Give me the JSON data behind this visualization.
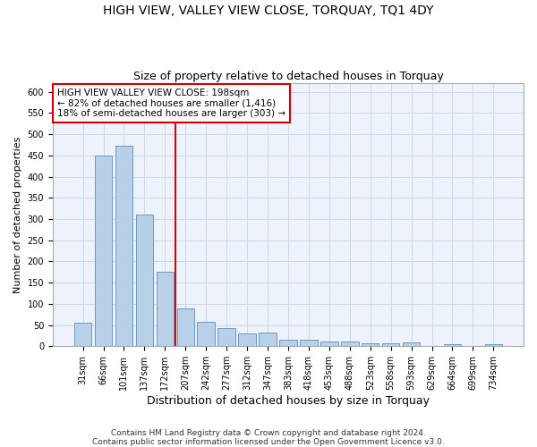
{
  "title": "HIGH VIEW, VALLEY VIEW CLOSE, TORQUAY, TQ1 4DY",
  "subtitle": "Size of property relative to detached houses in Torquay",
  "xlabel": "Distribution of detached houses by size in Torquay",
  "ylabel": "Number of detached properties",
  "categories": [
    "31sqm",
    "66sqm",
    "101sqm",
    "137sqm",
    "172sqm",
    "207sqm",
    "242sqm",
    "277sqm",
    "312sqm",
    "347sqm",
    "383sqm",
    "418sqm",
    "453sqm",
    "488sqm",
    "523sqm",
    "558sqm",
    "593sqm",
    "629sqm",
    "664sqm",
    "699sqm",
    "734sqm"
  ],
  "values": [
    55,
    450,
    472,
    311,
    176,
    88,
    58,
    42,
    30,
    32,
    15,
    15,
    10,
    10,
    7,
    7,
    9,
    0,
    5,
    0,
    5
  ],
  "bar_color": "#b8d0e8",
  "bar_edge_color": "#6699cc",
  "grid_color": "#d0d8e8",
  "background_color": "#ffffff",
  "plot_background": "#eef2fa",
  "annotation_text_line1": "HIGH VIEW VALLEY VIEW CLOSE: 198sqm",
  "annotation_text_line2": "← 82% of detached houses are smaller (1,416)",
  "annotation_text_line3": "18% of semi-detached houses are larger (303) →",
  "red_line_color": "#dd0000",
  "box_edge_color": "#cc0000",
  "footnote1": "Contains HM Land Registry data © Crown copyright and database right 2024.",
  "footnote2": "Contains public sector information licensed under the Open Government Licence v3.0.",
  "ylim": [
    0,
    620
  ],
  "yticks": [
    0,
    50,
    100,
    150,
    200,
    250,
    300,
    350,
    400,
    450,
    500,
    550,
    600
  ],
  "title_fontsize": 10,
  "subtitle_fontsize": 9,
  "ylabel_fontsize": 8,
  "xlabel_fontsize": 9,
  "tick_fontsize": 7,
  "annot_fontsize": 7.5,
  "footnote_fontsize": 6.5
}
